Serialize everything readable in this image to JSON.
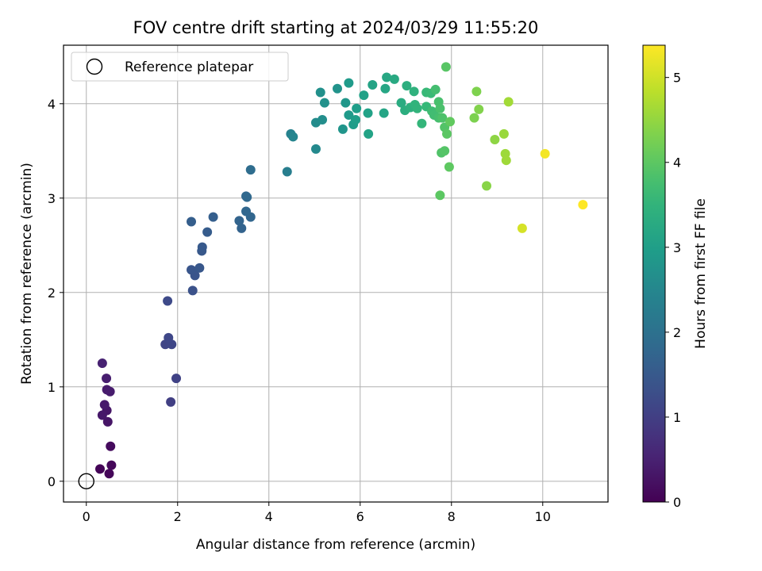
{
  "chart_data": {
    "type": "scatter",
    "title": "FOV centre drift starting at 2024/03/29 11:55:20",
    "xlabel": "Angular distance from reference (arcmin)",
    "ylabel": "Rotation from reference (arcmin)",
    "xlim": [
      -0.5,
      11.43
    ],
    "ylim": [
      -0.22,
      4.62
    ],
    "xticks": [
      0,
      2,
      4,
      6,
      8,
      10
    ],
    "yticks": [
      0,
      1,
      2,
      3,
      4
    ],
    "grid": true,
    "legend": {
      "position": "top-left",
      "entries": [
        "Reference platepar"
      ]
    },
    "reference_point": {
      "x": 0,
      "y": 0,
      "label": "Reference platepar"
    },
    "colorbar": {
      "label": "Hours from first FF file",
      "min": 0,
      "max": 5.38,
      "ticks": [
        0,
        1,
        2,
        3,
        4,
        5
      ],
      "colormap": "viridis"
    },
    "points": [
      {
        "x": 0.3,
        "y": 0.13,
        "c": 0.05
      },
      {
        "x": 0.5,
        "y": 0.08,
        "c": 0.08
      },
      {
        "x": 0.55,
        "y": 0.17,
        "c": 0.1
      },
      {
        "x": 0.53,
        "y": 0.37,
        "c": 0.15
      },
      {
        "x": 0.47,
        "y": 0.63,
        "c": 0.3
      },
      {
        "x": 0.45,
        "y": 0.75,
        "c": 0.32
      },
      {
        "x": 0.35,
        "y": 0.7,
        "c": 0.35
      },
      {
        "x": 0.4,
        "y": 0.81,
        "c": 0.38
      },
      {
        "x": 0.45,
        "y": 0.97,
        "c": 0.4
      },
      {
        "x": 0.52,
        "y": 0.95,
        "c": 0.42
      },
      {
        "x": 0.44,
        "y": 1.09,
        "c": 0.45
      },
      {
        "x": 0.35,
        "y": 1.25,
        "c": 0.5
      },
      {
        "x": 1.85,
        "y": 0.84,
        "c": 1.0
      },
      {
        "x": 1.97,
        "y": 1.09,
        "c": 1.05
      },
      {
        "x": 1.73,
        "y": 1.45,
        "c": 1.1
      },
      {
        "x": 1.87,
        "y": 1.45,
        "c": 1.12
      },
      {
        "x": 1.8,
        "y": 1.52,
        "c": 1.15
      },
      {
        "x": 1.78,
        "y": 1.91,
        "c": 1.2
      },
      {
        "x": 2.33,
        "y": 2.02,
        "c": 1.35
      },
      {
        "x": 2.38,
        "y": 2.18,
        "c": 1.4
      },
      {
        "x": 2.3,
        "y": 2.24,
        "c": 1.42
      },
      {
        "x": 2.48,
        "y": 2.26,
        "c": 1.45
      },
      {
        "x": 2.53,
        "y": 2.44,
        "c": 1.48
      },
      {
        "x": 2.54,
        "y": 2.48,
        "c": 1.5
      },
      {
        "x": 2.65,
        "y": 2.64,
        "c": 1.55
      },
      {
        "x": 2.3,
        "y": 2.75,
        "c": 1.6
      },
      {
        "x": 2.78,
        "y": 2.8,
        "c": 1.62
      },
      {
        "x": 3.4,
        "y": 2.68,
        "c": 1.7
      },
      {
        "x": 3.35,
        "y": 2.76,
        "c": 1.72
      },
      {
        "x": 3.6,
        "y": 2.8,
        "c": 1.75
      },
      {
        "x": 3.5,
        "y": 2.86,
        "c": 1.78
      },
      {
        "x": 3.5,
        "y": 3.02,
        "c": 1.8
      },
      {
        "x": 3.52,
        "y": 3.01,
        "c": 1.82
      },
      {
        "x": 3.6,
        "y": 3.3,
        "c": 1.9
      },
      {
        "x": 4.4,
        "y": 3.28,
        "c": 2.3
      },
      {
        "x": 4.48,
        "y": 3.68,
        "c": 2.4
      },
      {
        "x": 4.53,
        "y": 3.65,
        "c": 2.45
      },
      {
        "x": 5.03,
        "y": 3.52,
        "c": 2.55
      },
      {
        "x": 5.03,
        "y": 3.8,
        "c": 2.6
      },
      {
        "x": 5.17,
        "y": 3.83,
        "c": 2.65
      },
      {
        "x": 5.13,
        "y": 4.12,
        "c": 2.7
      },
      {
        "x": 5.22,
        "y": 4.01,
        "c": 2.72
      },
      {
        "x": 5.5,
        "y": 4.16,
        "c": 2.75
      },
      {
        "x": 5.62,
        "y": 3.73,
        "c": 2.8
      },
      {
        "x": 5.68,
        "y": 4.01,
        "c": 2.85
      },
      {
        "x": 5.75,
        "y": 3.88,
        "c": 2.9
      },
      {
        "x": 5.75,
        "y": 4.22,
        "c": 2.92
      },
      {
        "x": 5.85,
        "y": 3.78,
        "c": 2.95
      },
      {
        "x": 5.9,
        "y": 3.83,
        "c": 2.98
      },
      {
        "x": 5.92,
        "y": 3.95,
        "c": 3.0
      },
      {
        "x": 6.08,
        "y": 4.09,
        "c": 3.05
      },
      {
        "x": 6.17,
        "y": 3.9,
        "c": 3.08
      },
      {
        "x": 6.18,
        "y": 3.68,
        "c": 3.1
      },
      {
        "x": 6.27,
        "y": 4.2,
        "c": 3.12
      },
      {
        "x": 6.52,
        "y": 3.9,
        "c": 3.15
      },
      {
        "x": 6.55,
        "y": 4.16,
        "c": 3.18
      },
      {
        "x": 6.58,
        "y": 4.28,
        "c": 3.2
      },
      {
        "x": 6.75,
        "y": 4.26,
        "c": 3.25
      },
      {
        "x": 6.9,
        "y": 4.01,
        "c": 3.3
      },
      {
        "x": 6.98,
        "y": 3.93,
        "c": 3.35
      },
      {
        "x": 7.02,
        "y": 4.19,
        "c": 3.38
      },
      {
        "x": 7.1,
        "y": 3.96,
        "c": 3.4
      },
      {
        "x": 7.18,
        "y": 4.13,
        "c": 3.45
      },
      {
        "x": 7.2,
        "y": 3.99,
        "c": 3.48
      },
      {
        "x": 7.25,
        "y": 3.95,
        "c": 3.5
      },
      {
        "x": 7.35,
        "y": 3.79,
        "c": 3.55
      },
      {
        "x": 7.45,
        "y": 3.97,
        "c": 3.6
      },
      {
        "x": 7.45,
        "y": 4.12,
        "c": 3.62
      },
      {
        "x": 7.55,
        "y": 4.11,
        "c": 3.65
      },
      {
        "x": 7.57,
        "y": 3.92,
        "c": 3.7
      },
      {
        "x": 7.62,
        "y": 3.88,
        "c": 3.72
      },
      {
        "x": 7.65,
        "y": 4.15,
        "c": 3.75
      },
      {
        "x": 7.72,
        "y": 3.85,
        "c": 3.78
      },
      {
        "x": 7.72,
        "y": 4.02,
        "c": 3.8
      },
      {
        "x": 7.75,
        "y": 3.95,
        "c": 3.82
      },
      {
        "x": 7.8,
        "y": 3.85,
        "c": 3.85
      },
      {
        "x": 7.78,
        "y": 3.48,
        "c": 3.88
      },
      {
        "x": 7.85,
        "y": 3.75,
        "c": 3.9
      },
      {
        "x": 7.85,
        "y": 3.5,
        "c": 3.92
      },
      {
        "x": 7.88,
        "y": 4.39,
        "c": 3.95
      },
      {
        "x": 7.9,
        "y": 3.68,
        "c": 3.98
      },
      {
        "x": 7.75,
        "y": 3.03,
        "c": 4.0
      },
      {
        "x": 7.95,
        "y": 3.33,
        "c": 4.02
      },
      {
        "x": 7.97,
        "y": 3.81,
        "c": 4.05
      },
      {
        "x": 8.5,
        "y": 3.85,
        "c": 4.3
      },
      {
        "x": 8.55,
        "y": 4.13,
        "c": 4.32
      },
      {
        "x": 8.6,
        "y": 3.94,
        "c": 4.35
      },
      {
        "x": 8.77,
        "y": 3.13,
        "c": 4.4
      },
      {
        "x": 8.95,
        "y": 3.62,
        "c": 4.45
      },
      {
        "x": 9.15,
        "y": 3.68,
        "c": 4.55
      },
      {
        "x": 9.18,
        "y": 3.47,
        "c": 4.58
      },
      {
        "x": 9.2,
        "y": 3.4,
        "c": 4.6
      },
      {
        "x": 9.25,
        "y": 4.02,
        "c": 4.62
      },
      {
        "x": 9.55,
        "y": 2.68,
        "c": 5.05
      },
      {
        "x": 10.05,
        "y": 3.47,
        "c": 5.3
      },
      {
        "x": 10.88,
        "y": 2.93,
        "c": 5.38
      }
    ]
  }
}
